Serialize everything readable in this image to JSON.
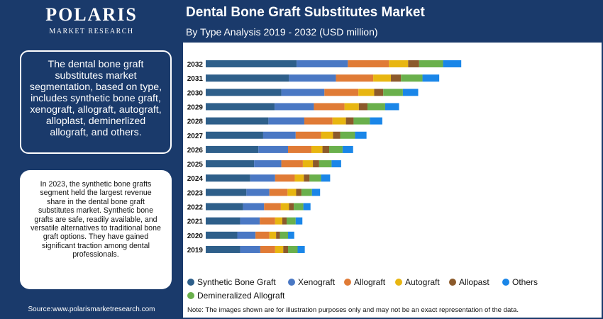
{
  "header": {
    "logo_main": "POLARIS",
    "logo_sub": "MARKET RESEARCH",
    "title": "Dental Bone Graft Substitutes Market",
    "subtitle": "By Type Analysis 2019 - 2032 (USD million)"
  },
  "sidebar": {
    "summary": "The dental bone graft substitutes market segmentation, based on type, includes synthetic bone graft, xenograft, allograft, autograft, alloplast, deminerlized allograft, and others.",
    "insight": "In 2023, the synthetic bone grafts segment held the largest revenue share in the dental bone graft substitutes market. Synthetic bone grafts are safe, readily available, and versatile alternatives to traditional bone graft options. They have gained significant traction among dental professionals.",
    "source": "Source:www.polarismarketresearch.com"
  },
  "footer": {
    "note": "Note: The images shown are for illustration purposes only and may not be an exact representation of the data."
  },
  "chart_data": {
    "type": "bar",
    "orientation": "horizontal",
    "stacked": true,
    "categories": [
      "2032",
      "2031",
      "2030",
      "2029",
      "2028",
      "2027",
      "2026",
      "2025",
      "2024",
      "2023",
      "2022",
      "2021",
      "2020",
      "2019"
    ],
    "series": [
      {
        "name": "Synthetic Bone Graft",
        "color": "#2e5f8a",
        "values": [
          190,
          174,
          158,
          144,
          131,
          120,
          110,
          101,
          93,
          85,
          78,
          72,
          66,
          72
        ]
      },
      {
        "name": "Xenograft",
        "color": "#4a78c4",
        "values": [
          107,
          98,
          90,
          82,
          75,
          68,
          62,
          57,
          52,
          48,
          44,
          41,
          38,
          42
        ]
      },
      {
        "name": "Allograft",
        "color": "#e07b36",
        "values": [
          86,
          78,
          71,
          64,
          59,
          53,
          49,
          45,
          41,
          38,
          35,
          32,
          29,
          31
        ]
      },
      {
        "name": "Autograft",
        "color": "#e8b611",
        "values": [
          40,
          37,
          33,
          30,
          28,
          25,
          23,
          21,
          19,
          18,
          17,
          15,
          14,
          17
        ]
      },
      {
        "name": "Allopast",
        "color": "#8b5a2b",
        "values": [
          23,
          21,
          19,
          18,
          16,
          15,
          14,
          13,
          12,
          11,
          10,
          9,
          8,
          10
        ]
      },
      {
        "name": "Demineralized Allograft",
        "color": "#6ab04c",
        "values": [
          50,
          45,
          41,
          37,
          34,
          31,
          28,
          26,
          24,
          22,
          20,
          19,
          17,
          20
        ]
      },
      {
        "name": "Others",
        "color": "#1a86e8",
        "values": [
          38,
          35,
          32,
          29,
          26,
          24,
          22,
          20,
          19,
          17,
          15,
          14,
          13,
          15
        ]
      }
    ],
    "legend_position": "bottom",
    "grid": false
  }
}
